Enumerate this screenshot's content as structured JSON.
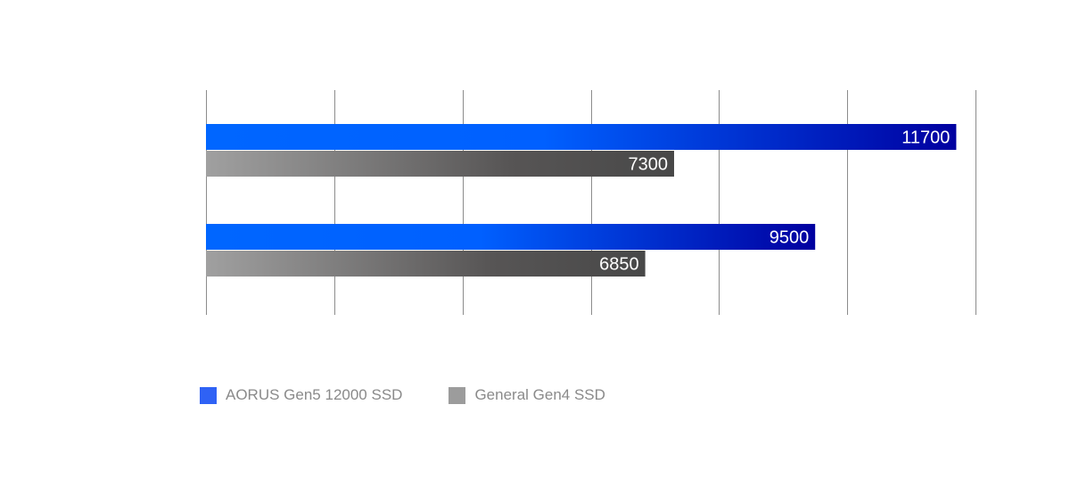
{
  "chart_data": {
    "type": "bar",
    "orientation": "horizontal",
    "title": "",
    "xlabel": "",
    "ylabel": "",
    "categories": [
      "",
      ""
    ],
    "xlim": [
      0,
      12000
    ],
    "grid": true,
    "legend_position": "bottom-left",
    "series": [
      {
        "name": "AORUS Gen5 12000 SSD",
        "values": [
          11700,
          9500
        ],
        "labels": [
          "11700",
          "9500"
        ],
        "color": "#0066ff",
        "gradient_end": "#0000a0"
      },
      {
        "name": "General Gen4 SSD",
        "values": [
          7300,
          6850
        ],
        "labels": [
          "7300",
          "6850"
        ],
        "color": "#a0a0a0",
        "gradient_end": "#484848"
      }
    ]
  },
  "legend": {
    "items": [
      {
        "label": "AORUS Gen5 12000 SSD",
        "color": "#2f62f5"
      },
      {
        "label": "General Gen4 SSD",
        "color": "#9c9c9c"
      }
    ]
  }
}
